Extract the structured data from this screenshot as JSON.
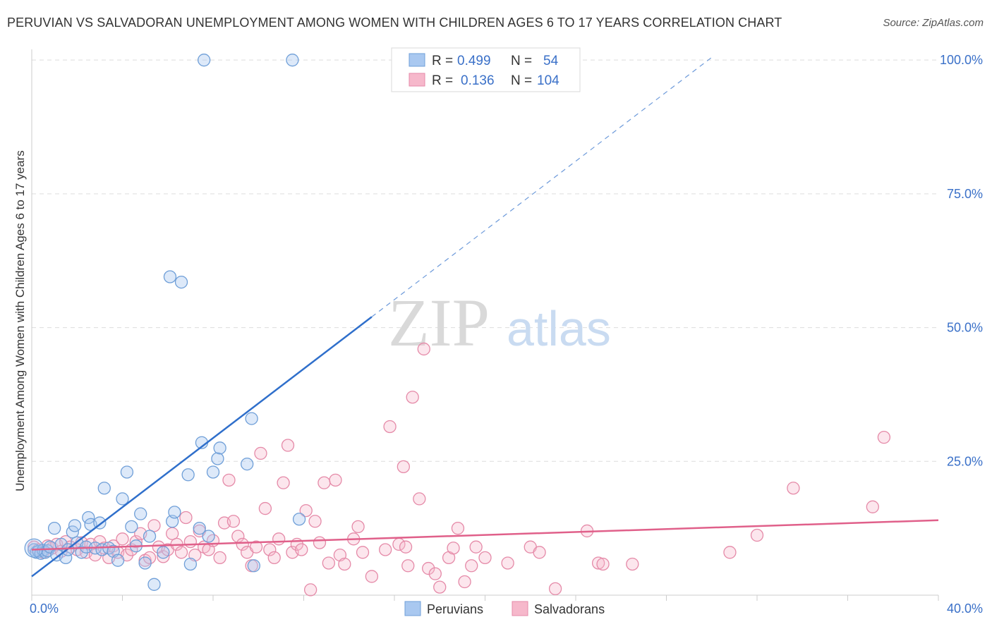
{
  "title": "PERUVIAN VS SALVADORAN UNEMPLOYMENT AMONG WOMEN WITH CHILDREN AGES 6 TO 17 YEARS CORRELATION CHART",
  "source": "Source: ZipAtlas.com",
  "watermark": {
    "zip": "ZIP",
    "atlas": "atlas"
  },
  "colors": {
    "peruvian_fill": "#a9c8f0",
    "peruvian_stroke": "#6f9fd8",
    "peruvian_line": "#2f6fcb",
    "salvadoran_fill": "#f6b8cb",
    "salvadoran_stroke": "#e58aa8",
    "salvadoran_line": "#e0608a",
    "axis_label": "#3a70c8",
    "grid": "#dddddd"
  },
  "stats": {
    "r_label": "R =",
    "n_label": "N =",
    "peruvian": {
      "r": "0.499",
      "n": "54"
    },
    "salvadoran": {
      "r": "0.136",
      "n": "104"
    }
  },
  "chart_data": {
    "type": "scatter",
    "title": "PERUVIAN VS SALVADORAN UNEMPLOYMENT AMONG WOMEN WITH CHILDREN AGES 6 TO 17 YEARS CORRELATION CHART",
    "xlabel": "",
    "ylabel": "Unemployment Among Women with Children Ages 6 to 17 years",
    "xlim": [
      0,
      40
    ],
    "ylim": [
      0,
      102
    ],
    "x_tick_labels": [
      "0.0%",
      "40.0%"
    ],
    "y_tick_labels": [
      "25.0%",
      "50.0%",
      "75.0%",
      "100.0%"
    ],
    "y_ticks": [
      25,
      50,
      75,
      100
    ],
    "grid": true,
    "legend_position": "bottom-center",
    "series": [
      {
        "name": "Peruvians",
        "trend": {
          "x1": 0,
          "y1": 3.5,
          "x2": 15.0,
          "y2": 52.0,
          "dash_to_x": 30.0,
          "dash_to_y": 100.5
        },
        "points": [
          [
            0.1,
            8.5
          ],
          [
            0.2,
            8.0
          ],
          [
            0.3,
            8.2
          ],
          [
            0.4,
            7.8
          ],
          [
            0.5,
            8.4
          ],
          [
            0.6,
            8.0
          ],
          [
            0.7,
            8.3
          ],
          [
            0.8,
            9.0
          ],
          [
            1.0,
            12.5
          ],
          [
            1.1,
            7.5
          ],
          [
            1.3,
            9.5
          ],
          [
            1.5,
            7.0
          ],
          [
            1.6,
            8.5
          ],
          [
            1.8,
            11.8
          ],
          [
            1.9,
            13.0
          ],
          [
            2.0,
            9.8
          ],
          [
            2.2,
            8.0
          ],
          [
            2.4,
            9.0
          ],
          [
            2.5,
            14.5
          ],
          [
            2.6,
            13.2
          ],
          [
            2.8,
            8.8
          ],
          [
            3.0,
            13.5
          ],
          [
            3.1,
            8.5
          ],
          [
            3.2,
            20.0
          ],
          [
            3.4,
            8.8
          ],
          [
            3.6,
            8.2
          ],
          [
            3.8,
            6.5
          ],
          [
            4.0,
            18.0
          ],
          [
            4.2,
            23.0
          ],
          [
            4.4,
            12.8
          ],
          [
            4.6,
            9.2
          ],
          [
            4.8,
            15.2
          ],
          [
            5.0,
            6.0
          ],
          [
            5.2,
            11.0
          ],
          [
            5.4,
            2.0
          ],
          [
            5.8,
            8.0
          ],
          [
            6.1,
            59.5
          ],
          [
            6.2,
            13.8
          ],
          [
            6.3,
            15.5
          ],
          [
            6.6,
            58.5
          ],
          [
            6.9,
            22.5
          ],
          [
            7.0,
            5.8
          ],
          [
            7.4,
            12.5
          ],
          [
            7.5,
            28.5
          ],
          [
            7.6,
            100.0
          ],
          [
            7.8,
            11.0
          ],
          [
            8.0,
            23.0
          ],
          [
            8.2,
            25.5
          ],
          [
            8.3,
            27.5
          ],
          [
            9.5,
            24.5
          ],
          [
            9.7,
            33.0
          ],
          [
            9.8,
            5.5
          ],
          [
            11.5,
            100.0
          ],
          [
            11.8,
            14.2
          ]
        ]
      },
      {
        "name": "Salvadorans",
        "trend": {
          "x1": 0,
          "y1": 8.5,
          "x2": 40,
          "y2": 14.0
        },
        "points": [
          [
            0.1,
            9.0
          ],
          [
            0.3,
            8.5
          ],
          [
            0.5,
            8.0
          ],
          [
            0.7,
            9.2
          ],
          [
            0.9,
            8.8
          ],
          [
            1.1,
            9.5
          ],
          [
            1.3,
            8.2
          ],
          [
            1.5,
            10.0
          ],
          [
            1.7,
            9.0
          ],
          [
            2.0,
            8.5
          ],
          [
            2.2,
            9.8
          ],
          [
            2.4,
            8.0
          ],
          [
            2.6,
            9.5
          ],
          [
            2.8,
            7.5
          ],
          [
            3.0,
            10.0
          ],
          [
            3.2,
            8.8
          ],
          [
            3.4,
            7.0
          ],
          [
            3.6,
            9.2
          ],
          [
            3.8,
            8.0
          ],
          [
            4.0,
            10.5
          ],
          [
            4.2,
            7.5
          ],
          [
            4.4,
            8.5
          ],
          [
            4.6,
            10.0
          ],
          [
            4.8,
            11.5
          ],
          [
            5.0,
            6.5
          ],
          [
            5.2,
            7.0
          ],
          [
            5.4,
            13.0
          ],
          [
            5.6,
            9.0
          ],
          [
            5.8,
            7.2
          ],
          [
            6.0,
            8.5
          ],
          [
            6.2,
            11.5
          ],
          [
            6.4,
            9.5
          ],
          [
            6.6,
            8.0
          ],
          [
            6.8,
            14.5
          ],
          [
            7.0,
            10.0
          ],
          [
            7.2,
            7.5
          ],
          [
            7.4,
            12.0
          ],
          [
            7.6,
            9.0
          ],
          [
            7.8,
            8.5
          ],
          [
            8.0,
            10.2
          ],
          [
            8.3,
            7.0
          ],
          [
            8.5,
            13.5
          ],
          [
            8.7,
            21.5
          ],
          [
            8.9,
            13.8
          ],
          [
            9.1,
            11.0
          ],
          [
            9.3,
            9.5
          ],
          [
            9.5,
            8.0
          ],
          [
            9.7,
            5.5
          ],
          [
            9.9,
            9.0
          ],
          [
            10.1,
            26.5
          ],
          [
            10.3,
            16.2
          ],
          [
            10.5,
            8.5
          ],
          [
            10.7,
            7.0
          ],
          [
            10.9,
            10.5
          ],
          [
            11.1,
            21.0
          ],
          [
            11.3,
            28.0
          ],
          [
            11.5,
            8.0
          ],
          [
            11.7,
            9.5
          ],
          [
            11.9,
            8.5
          ],
          [
            12.1,
            15.8
          ],
          [
            12.3,
            1.0
          ],
          [
            12.5,
            13.8
          ],
          [
            12.7,
            9.8
          ],
          [
            12.9,
            21.0
          ],
          [
            13.1,
            6.0
          ],
          [
            13.4,
            21.5
          ],
          [
            13.6,
            7.5
          ],
          [
            13.8,
            5.8
          ],
          [
            14.2,
            10.5
          ],
          [
            14.4,
            12.8
          ],
          [
            14.6,
            8.0
          ],
          [
            15.0,
            3.5
          ],
          [
            15.6,
            8.5
          ],
          [
            15.8,
            31.5
          ],
          [
            16.2,
            9.5
          ],
          [
            16.4,
            24.0
          ],
          [
            16.6,
            5.5
          ],
          [
            16.8,
            37.0
          ],
          [
            17.1,
            18.0
          ],
          [
            17.3,
            46.0
          ],
          [
            17.5,
            5.0
          ],
          [
            17.8,
            4.0
          ],
          [
            18.0,
            1.5
          ],
          [
            18.4,
            7.0
          ],
          [
            18.6,
            8.8
          ],
          [
            18.8,
            12.5
          ],
          [
            19.1,
            2.5
          ],
          [
            19.4,
            5.5
          ],
          [
            19.6,
            9.0
          ],
          [
            20.0,
            7.0
          ],
          [
            21.0,
            6.0
          ],
          [
            22.0,
            9.0
          ],
          [
            22.4,
            8.0
          ],
          [
            24.5,
            12.0
          ],
          [
            25.0,
            6.0
          ],
          [
            25.2,
            5.8
          ],
          [
            26.5,
            5.8
          ],
          [
            30.8,
            8.0
          ],
          [
            32.0,
            11.2
          ],
          [
            33.6,
            20.0
          ],
          [
            37.1,
            16.5
          ],
          [
            37.6,
            29.5
          ],
          [
            23.1,
            1.2
          ],
          [
            16.5,
            9.0
          ]
        ]
      }
    ]
  }
}
